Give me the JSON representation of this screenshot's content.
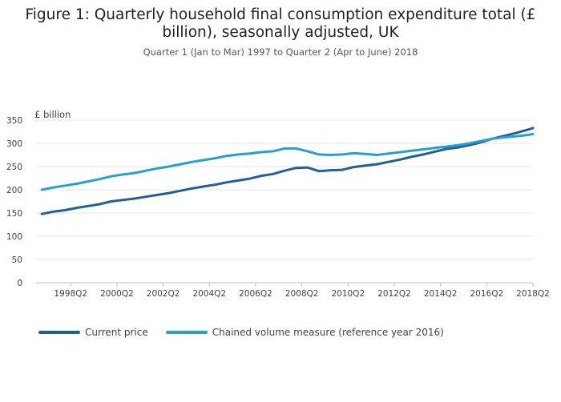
{
  "chart_data": {
    "type": "line",
    "title": "Figure 1: Quarterly household final consumption expenditure total (£ billion), seasonally adjusted, UK",
    "subtitle": "Quarter 1 (Jan to Mar) 1997 to Quarter 2 (Apr to June) 2018",
    "ylabel": "£ billion",
    "xlabel": "",
    "ylim": [
      0,
      350
    ],
    "yticks": [
      0,
      50,
      100,
      150,
      200,
      250,
      300,
      350
    ],
    "xlim": [
      "1997Q1",
      "2018Q2"
    ],
    "xticks": [
      "1998Q2",
      "2000Q2",
      "2002Q2",
      "2004Q2",
      "2006Q2",
      "2008Q2",
      "2010Q2",
      "2012Q2",
      "2014Q2",
      "2016Q2",
      "2018Q2"
    ],
    "grid": true,
    "legend_position": "bottom",
    "series": [
      {
        "name": "Current price",
        "color": "#206095",
        "points": [
          [
            "1997Q1",
            148
          ],
          [
            "1997Q3",
            153
          ],
          [
            "1998Q1",
            156
          ],
          [
            "1998Q3",
            161
          ],
          [
            "1999Q1",
            165
          ],
          [
            "1999Q3",
            169
          ],
          [
            "2000Q1",
            175
          ],
          [
            "2000Q3",
            178
          ],
          [
            "2001Q1",
            181
          ],
          [
            "2001Q3",
            185
          ],
          [
            "2002Q1",
            189
          ],
          [
            "2002Q3",
            193
          ],
          [
            "2003Q1",
            198
          ],
          [
            "2003Q3",
            203
          ],
          [
            "2004Q1",
            207
          ],
          [
            "2004Q3",
            211
          ],
          [
            "2005Q1",
            216
          ],
          [
            "2005Q3",
            220
          ],
          [
            "2006Q1",
            224
          ],
          [
            "2006Q3",
            230
          ],
          [
            "2007Q1",
            234
          ],
          [
            "2007Q3",
            241
          ],
          [
            "2008Q1",
            247
          ],
          [
            "2008Q3",
            248
          ],
          [
            "2009Q1",
            240
          ],
          [
            "2009Q3",
            242
          ],
          [
            "2010Q1",
            243
          ],
          [
            "2010Q3",
            249
          ],
          [
            "2011Q1",
            252
          ],
          [
            "2011Q3",
            255
          ],
          [
            "2012Q1",
            260
          ],
          [
            "2012Q3",
            265
          ],
          [
            "2013Q1",
            271
          ],
          [
            "2013Q3",
            276
          ],
          [
            "2014Q1",
            282
          ],
          [
            "2014Q3",
            288
          ],
          [
            "2015Q1",
            291
          ],
          [
            "2015Q3",
            296
          ],
          [
            "2016Q1",
            302
          ],
          [
            "2016Q3",
            310
          ],
          [
            "2017Q1",
            316
          ],
          [
            "2017Q3",
            322
          ],
          [
            "2018Q1",
            329
          ],
          [
            "2018Q2",
            333
          ]
        ]
      },
      {
        "name": "Chained volume measure (reference year 2016)",
        "color": "#27a0cc",
        "points": [
          [
            "1997Q1",
            200
          ],
          [
            "1997Q3",
            205
          ],
          [
            "1998Q1",
            209
          ],
          [
            "1998Q3",
            213
          ],
          [
            "1999Q1",
            218
          ],
          [
            "1999Q3",
            223
          ],
          [
            "2000Q1",
            229
          ],
          [
            "2000Q3",
            233
          ],
          [
            "2001Q1",
            236
          ],
          [
            "2001Q3",
            241
          ],
          [
            "2002Q1",
            246
          ],
          [
            "2002Q3",
            250
          ],
          [
            "2003Q1",
            255
          ],
          [
            "2003Q3",
            260
          ],
          [
            "2004Q1",
            264
          ],
          [
            "2004Q3",
            268
          ],
          [
            "2005Q1",
            273
          ],
          [
            "2005Q3",
            276
          ],
          [
            "2006Q1",
            278
          ],
          [
            "2006Q3",
            281
          ],
          [
            "2007Q1",
            283
          ],
          [
            "2007Q3",
            289
          ],
          [
            "2008Q1",
            289
          ],
          [
            "2008Q3",
            283
          ],
          [
            "2009Q1",
            276
          ],
          [
            "2009Q3",
            275
          ],
          [
            "2010Q1",
            276
          ],
          [
            "2010Q3",
            279
          ],
          [
            "2011Q1",
            277
          ],
          [
            "2011Q3",
            275
          ],
          [
            "2012Q1",
            278
          ],
          [
            "2012Q3",
            281
          ],
          [
            "2013Q1",
            284
          ],
          [
            "2013Q3",
            287
          ],
          [
            "2014Q1",
            290
          ],
          [
            "2014Q3",
            293
          ],
          [
            "2015Q1",
            296
          ],
          [
            "2015Q3",
            300
          ],
          [
            "2016Q1",
            305
          ],
          [
            "2016Q3",
            310
          ],
          [
            "2017Q1",
            313
          ],
          [
            "2017Q3",
            315
          ],
          [
            "2018Q1",
            318
          ],
          [
            "2018Q2",
            320
          ]
        ]
      }
    ]
  }
}
